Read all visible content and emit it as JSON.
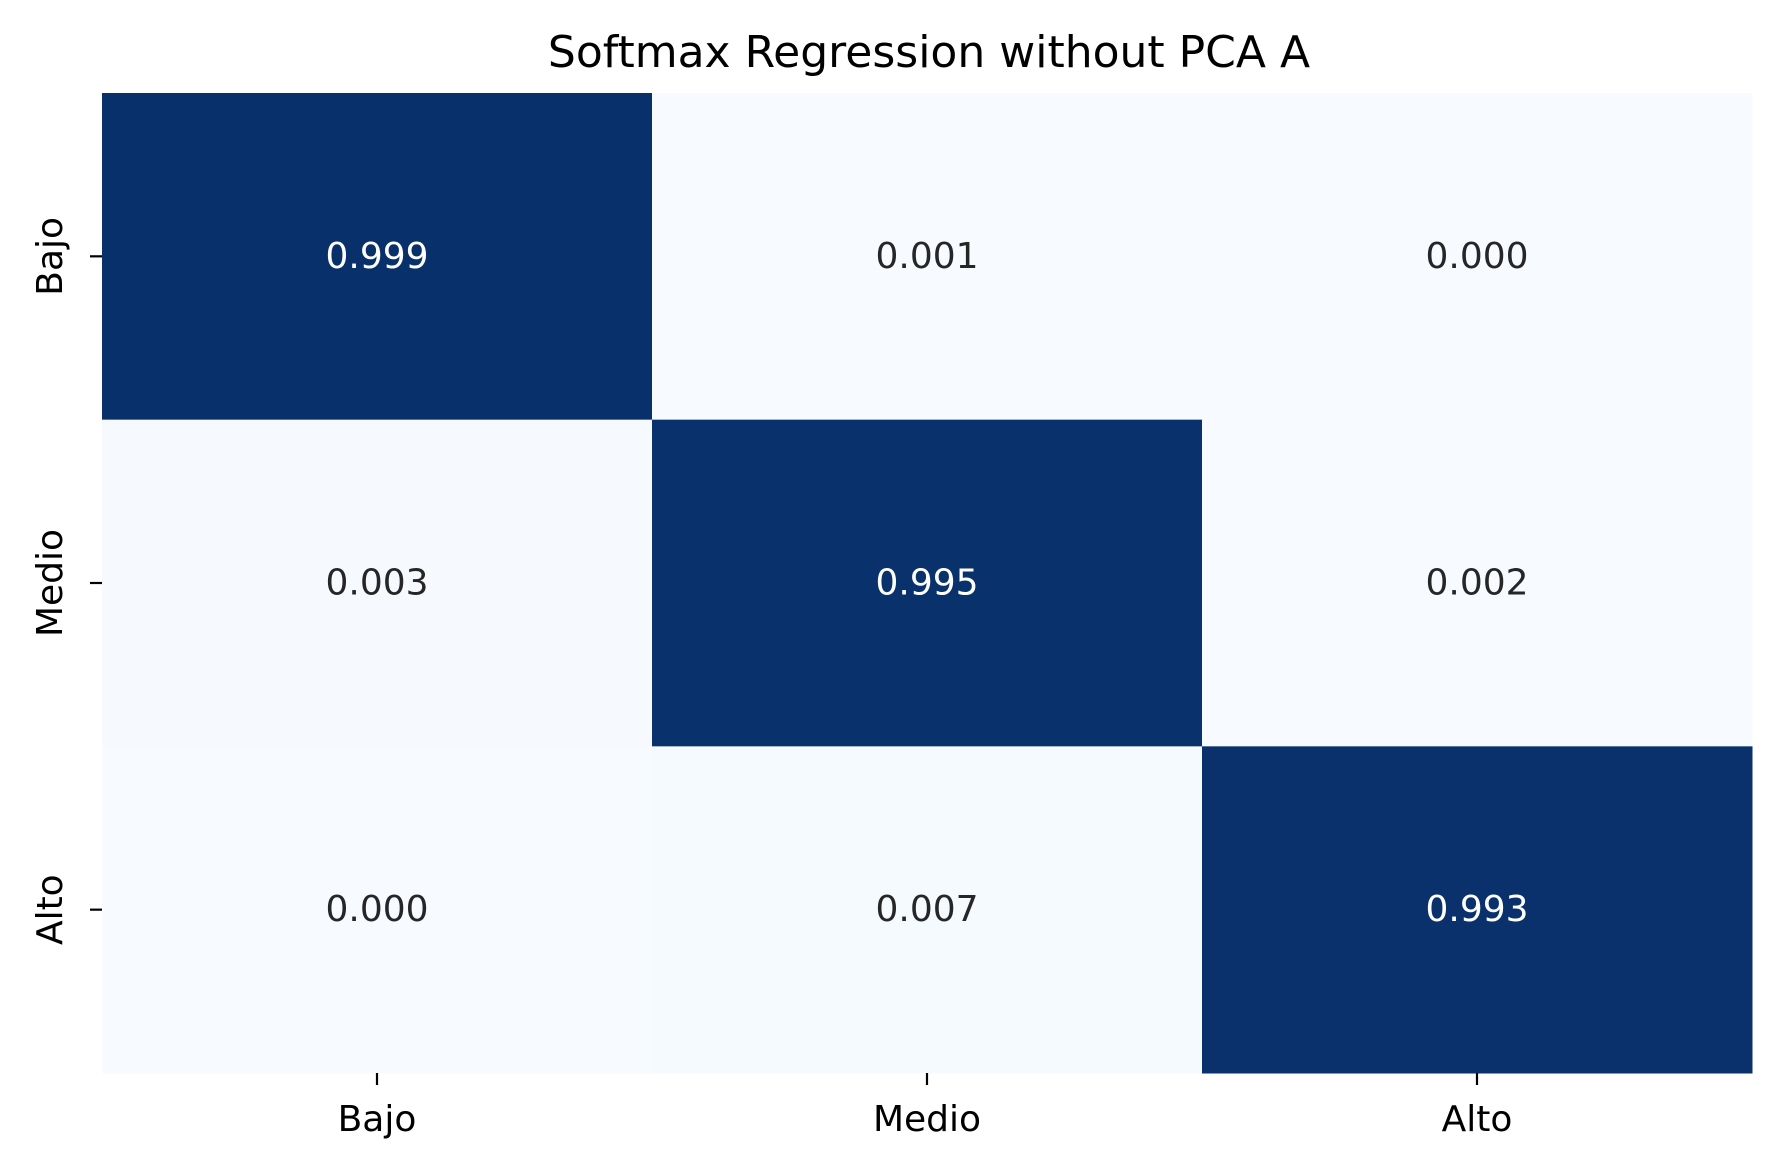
{
  "chart_data": {
    "type": "heatmap",
    "title": "Softmax Regression without PCA A",
    "xlabel": "",
    "ylabel": "",
    "x_categories": [
      "Bajo",
      "Medio",
      "Alto"
    ],
    "y_categories": [
      "Bajo",
      "Medio",
      "Alto"
    ],
    "values": [
      [
        0.999,
        0.001,
        0.0
      ],
      [
        0.003,
        0.995,
        0.002
      ],
      [
        0.0,
        0.007,
        0.993
      ]
    ],
    "value_labels": [
      [
        "0.999",
        "0.001",
        "0.000"
      ],
      [
        "0.003",
        "0.995",
        "0.002"
      ],
      [
        "0.000",
        "0.007",
        "0.993"
      ]
    ],
    "colormap": "Blues",
    "vmin": 0,
    "vmax": 1,
    "colors": {
      "low": "#f7fbff",
      "high": "#08306b",
      "text_dark": "#262626",
      "text_light": "#ffffff"
    },
    "colorbar": false,
    "grid": false,
    "legend": "none"
  }
}
